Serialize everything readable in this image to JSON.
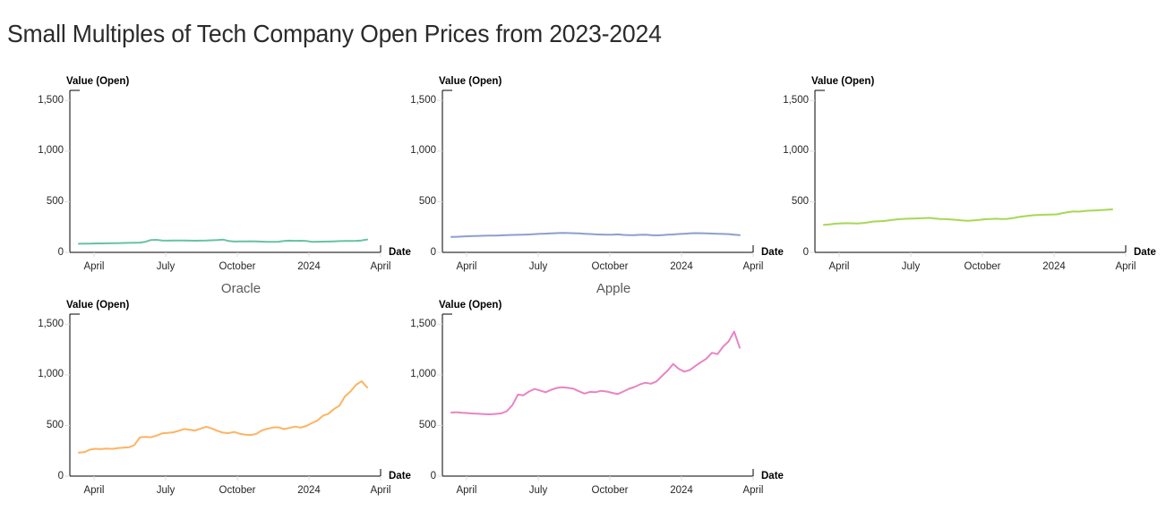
{
  "chart_data": {
    "type": "line",
    "title": "Small Multiples of Tech Company Open Prices from 2023-2024",
    "xlabel": "Date",
    "ylabel": "Value (Open)",
    "ylim": [
      0,
      1600
    ],
    "grid": false,
    "legend": "none (faceted small multiples, titles below each panel)",
    "x_tick_labels": [
      "April",
      "July",
      "October",
      "2024",
      "April"
    ],
    "y_tick_values": [
      1500,
      1000,
      500,
      0
    ],
    "y_tick_labels": [
      "1,500",
      "1,000",
      "500",
      "0"
    ],
    "x_range": "weekly samples, ~March 2023 to ~March 2024",
    "colors": {
      "axis_domain": "#000000",
      "tick_mark": "#dddddd",
      "tick_label": "#262626",
      "facet_title": "#595959",
      "title": "#2b2b2b"
    },
    "panels": [
      {
        "title": "Oracle",
        "color": "#66c2a5",
        "values": [
          85,
          86,
          87,
          88,
          88,
          89,
          90,
          91,
          93,
          94,
          95,
          96,
          104,
          122,
          124,
          118,
          116,
          117,
          117,
          118,
          116,
          115,
          116,
          117,
          119,
          121,
          126,
          112,
          107,
          108,
          109,
          110,
          108,
          106,
          104,
          103,
          105,
          112,
          116,
          114,
          115,
          113,
          104,
          105,
          106,
          107,
          109,
          111,
          112,
          113,
          114,
          118,
          127
        ]
      },
      {
        "title": "Apple",
        "color": "#8da0cb",
        "values": [
          152,
          154,
          157,
          159,
          161,
          163,
          164,
          165,
          166,
          168,
          170,
          172,
          173,
          175,
          177,
          180,
          183,
          185,
          187,
          190,
          192,
          191,
          189,
          187,
          184,
          181,
          178,
          176,
          174,
          175,
          178,
          172,
          170,
          171,
          173,
          175,
          170,
          168,
          171,
          174,
          177,
          181,
          184,
          187,
          190,
          189,
          188,
          186,
          184,
          182,
          180,
          175,
          171
        ]
      },
      {
        "title": "",
        "color": "#a6d854",
        "values": [
          272,
          277,
          283,
          286,
          288,
          287,
          285,
          290,
          296,
          305,
          308,
          310,
          318,
          325,
          330,
          332,
          334,
          336,
          338,
          340,
          335,
          330,
          328,
          324,
          321,
          315,
          312,
          316,
          320,
          327,
          330,
          332,
          329,
          331,
          338,
          348,
          355,
          362,
          368,
          370,
          372,
          374,
          376,
          388,
          397,
          404,
          402,
          408,
          412,
          415,
          417,
          421,
          425
        ]
      },
      {
        "title": "",
        "color": "#fdb462",
        "values": [
          232,
          236,
          262,
          270,
          266,
          271,
          269,
          276,
          281,
          284,
          305,
          382,
          388,
          384,
          400,
          422,
          426,
          432,
          447,
          465,
          458,
          450,
          470,
          487,
          470,
          447,
          429,
          424,
          436,
          419,
          409,
          406,
          417,
          451,
          468,
          479,
          483,
          464,
          476,
          489,
          479,
          495,
          522,
          548,
          596,
          616,
          661,
          696,
          788,
          836,
          902,
          938,
          876
        ]
      },
      {
        "title": "",
        "color": "#e884c3",
        "values": [
          628,
          630,
          625,
          622,
          618,
          615,
          612,
          610,
          614,
          620,
          641,
          700,
          805,
          798,
          835,
          861,
          845,
          828,
          852,
          871,
          878,
          872,
          864,
          838,
          815,
          832,
          828,
          842,
          835,
          822,
          810,
          835,
          862,
          880,
          905,
          922,
          912,
          935,
          990,
          1042,
          1108,
          1060,
          1032,
          1048,
          1088,
          1125,
          1160,
          1218,
          1205,
          1278,
          1330,
          1428,
          1268
        ]
      }
    ]
  }
}
